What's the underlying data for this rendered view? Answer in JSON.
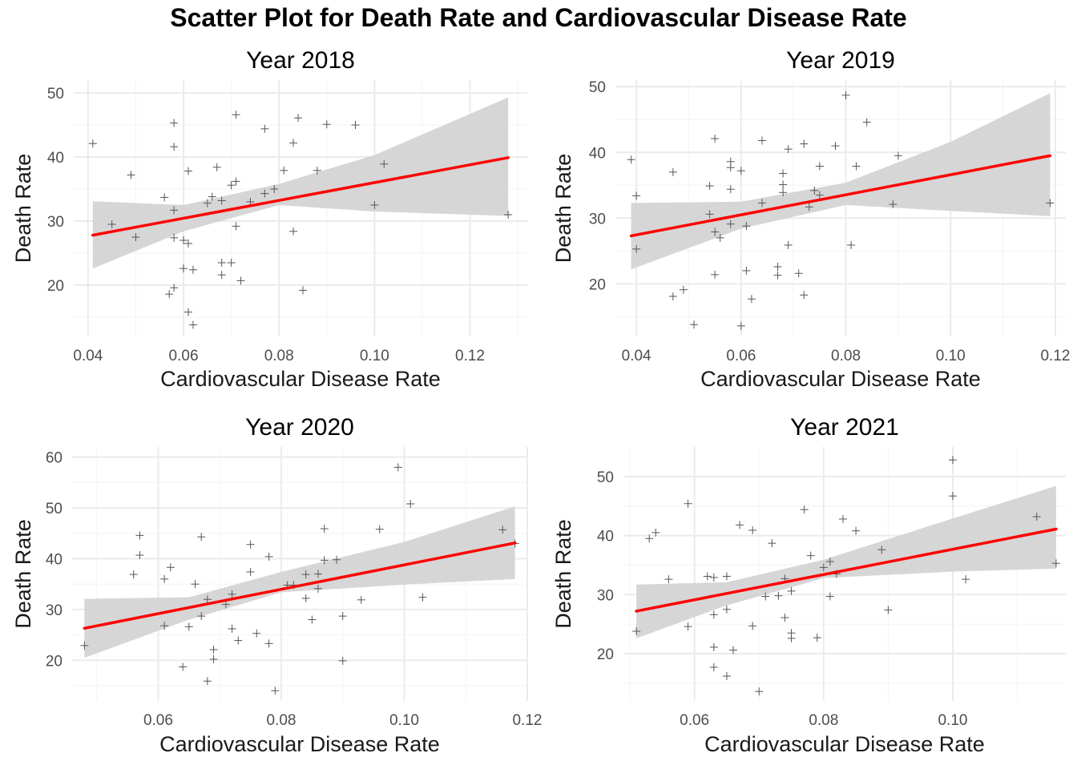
{
  "title": "Scatter Plot for Death Rate and Cardiovascular Disease Rate",
  "colors": {
    "fit": "#ff0000",
    "band": "#d4d4d4",
    "grid_major": "#ebebeb",
    "grid_minor": "#f5f5f5",
    "point": "#555555"
  },
  "chart_data": [
    {
      "type": "scatter",
      "title": "Year 2018",
      "xlabel": "Cardiovascular Disease Rate",
      "ylabel": "Death Rate",
      "xlim": [
        0.037,
        0.132
      ],
      "ylim": [
        12,
        52
      ],
      "xticks": [
        0.04,
        0.06,
        0.08,
        0.1,
        0.12
      ],
      "xtick_labels": [
        "0.04",
        "0.06",
        "0.08",
        "0.10",
        "0.12"
      ],
      "yticks": [
        20,
        30,
        40,
        50
      ],
      "ytick_labels": [
        "20",
        "30",
        "40",
        "50"
      ],
      "grid": true,
      "marker": "plus",
      "fit": {
        "x": [
          0.041,
          0.128
        ],
        "y": [
          27.8,
          39.9
        ]
      },
      "band": {
        "x": [
          0.041,
          0.06,
          0.08,
          0.1,
          0.128
        ],
        "lower": [
          22.6,
          28.4,
          32.5,
          31.5,
          30.8
        ],
        "upper": [
          33.1,
          32.5,
          35.8,
          40.3,
          49.3
        ]
      },
      "points": {
        "x": [
          0.041,
          0.045,
          0.049,
          0.05,
          0.056,
          0.057,
          0.058,
          0.058,
          0.058,
          0.058,
          0.058,
          0.06,
          0.06,
          0.061,
          0.061,
          0.061,
          0.062,
          0.062,
          0.065,
          0.066,
          0.067,
          0.068,
          0.068,
          0.068,
          0.07,
          0.07,
          0.071,
          0.071,
          0.071,
          0.072,
          0.074,
          0.077,
          0.077,
          0.079,
          0.081,
          0.083,
          0.083,
          0.084,
          0.085,
          0.088,
          0.09,
          0.096,
          0.1,
          0.102,
          0.128
        ],
        "y": [
          42.1,
          29.5,
          37.2,
          27.5,
          33.7,
          18.6,
          45.3,
          41.6,
          31.7,
          27.4,
          19.6,
          27.0,
          22.6,
          37.8,
          26.5,
          15.8,
          22.4,
          13.8,
          32.8,
          33.8,
          38.4,
          23.5,
          21.6,
          33.2,
          35.6,
          23.5,
          46.6,
          36.2,
          29.2,
          20.7,
          33.0,
          44.4,
          34.3,
          35.0,
          37.9,
          42.2,
          28.4,
          46.1,
          19.2,
          37.9,
          45.1,
          45.0,
          32.5,
          38.9,
          31.0
        ]
      }
    },
    {
      "type": "scatter",
      "title": "Year 2019",
      "xlabel": "Cardiovascular Disease Rate",
      "ylabel": "Death Rate",
      "xlim": [
        0.036,
        0.122
      ],
      "ylim": [
        12,
        51
      ],
      "xticks": [
        0.04,
        0.06,
        0.08,
        0.1,
        0.12
      ],
      "xtick_labels": [
        "0.04",
        "0.06",
        "0.08",
        "0.10",
        "0.12"
      ],
      "yticks": [
        20,
        30,
        40,
        50
      ],
      "ytick_labels": [
        "20",
        "30",
        "40",
        "50"
      ],
      "grid": true,
      "marker": "plus",
      "fit": {
        "x": [
          0.039,
          0.119
        ],
        "y": [
          27.3,
          39.5
        ]
      },
      "band": {
        "x": [
          0.039,
          0.06,
          0.08,
          0.1,
          0.119
        ],
        "lower": [
          22.2,
          28.4,
          32.0,
          31.1,
          30.3
        ],
        "upper": [
          32.3,
          32.5,
          35.4,
          41.6,
          49.0
        ]
      },
      "points": {
        "x": [
          0.039,
          0.04,
          0.04,
          0.047,
          0.047,
          0.049,
          0.051,
          0.054,
          0.054,
          0.055,
          0.055,
          0.055,
          0.056,
          0.058,
          0.058,
          0.058,
          0.058,
          0.06,
          0.06,
          0.061,
          0.061,
          0.062,
          0.064,
          0.064,
          0.067,
          0.067,
          0.068,
          0.068,
          0.068,
          0.069,
          0.069,
          0.071,
          0.072,
          0.072,
          0.073,
          0.074,
          0.075,
          0.075,
          0.078,
          0.08,
          0.081,
          0.082,
          0.084,
          0.089,
          0.09,
          0.119
        ],
        "y": [
          38.9,
          33.4,
          25.3,
          37.0,
          18.1,
          19.1,
          13.8,
          34.9,
          30.6,
          42.1,
          27.9,
          21.4,
          27.0,
          38.6,
          37.7,
          34.4,
          29.1,
          37.2,
          13.6,
          22.0,
          28.8,
          17.7,
          41.8,
          32.3,
          22.6,
          21.3,
          36.8,
          35.1,
          33.9,
          40.5,
          25.9,
          21.6,
          41.3,
          18.3,
          31.7,
          34.2,
          37.9,
          33.5,
          41.0,
          48.7,
          25.9,
          37.9,
          44.6,
          32.1,
          39.5,
          32.3
        ]
      }
    },
    {
      "type": "scatter",
      "title": "Year 2020",
      "xlabel": "Cardiovascular Disease Rate",
      "ylabel": "Death Rate",
      "xlim": [
        0.046,
        0.12
      ],
      "ylim": [
        12,
        62
      ],
      "xticks": [
        0.06,
        0.08,
        0.1,
        0.12
      ],
      "xtick_labels": [
        "0.06",
        "0.08",
        "0.10",
        "0.12"
      ],
      "yticks": [
        20,
        30,
        40,
        50,
        60
      ],
      "ytick_labels": [
        "20",
        "30",
        "40",
        "50",
        "60"
      ],
      "grid": true,
      "marker": "plus",
      "fit": {
        "x": [
          0.048,
          0.118
        ],
        "y": [
          26.3,
          43.1
        ]
      },
      "band": {
        "x": [
          0.048,
          0.065,
          0.08,
          0.1,
          0.118
        ],
        "lower": [
          20.5,
          28.0,
          33.4,
          34.9,
          36.0
        ],
        "upper": [
          32.1,
          32.4,
          37.4,
          43.3,
          50.3
        ]
      },
      "points": {
        "x": [
          0.048,
          0.056,
          0.057,
          0.057,
          0.061,
          0.061,
          0.062,
          0.064,
          0.065,
          0.066,
          0.067,
          0.067,
          0.068,
          0.068,
          0.069,
          0.069,
          0.071,
          0.072,
          0.072,
          0.073,
          0.075,
          0.075,
          0.076,
          0.078,
          0.078,
          0.079,
          0.081,
          0.082,
          0.084,
          0.084,
          0.085,
          0.086,
          0.086,
          0.087,
          0.087,
          0.089,
          0.09,
          0.09,
          0.093,
          0.096,
          0.099,
          0.101,
          0.103,
          0.116,
          0.118
        ],
        "y": [
          22.9,
          36.9,
          44.6,
          40.7,
          36.0,
          26.8,
          38.3,
          18.7,
          26.6,
          35.0,
          44.3,
          28.7,
          15.9,
          32.0,
          22.1,
          20.2,
          31.0,
          33.0,
          26.2,
          23.9,
          42.8,
          37.4,
          25.3,
          40.4,
          23.3,
          14.0,
          34.8,
          34.8,
          36.9,
          32.2,
          28.0,
          34.1,
          37.0,
          45.9,
          39.7,
          39.8,
          28.7,
          19.9,
          31.9,
          45.8,
          58.0,
          50.8,
          32.4,
          45.7,
          43.0
        ]
      }
    },
    {
      "type": "scatter",
      "title": "Year 2021",
      "xlabel": "Cardiovascular Disease Rate",
      "ylabel": "Death Rate",
      "xlim": [
        0.049,
        0.1175
      ],
      "ylim": [
        12,
        55
      ],
      "xticks": [
        0.06,
        0.08,
        0.1
      ],
      "xtick_labels": [
        "0.06",
        "0.08",
        "0.10"
      ],
      "yticks": [
        20,
        30,
        40,
        50
      ],
      "ytick_labels": [
        "20",
        "30",
        "40",
        "50"
      ],
      "grid": true,
      "marker": "plus",
      "fit": {
        "x": [
          0.051,
          0.116
        ],
        "y": [
          27.2,
          41.1
        ]
      },
      "band": {
        "x": [
          0.051,
          0.065,
          0.08,
          0.1,
          0.116
        ],
        "lower": [
          22.6,
          28.2,
          32.8,
          33.9,
          34.4
        ],
        "upper": [
          31.7,
          32.1,
          35.9,
          42.9,
          48.4
        ]
      },
      "points": {
        "x": [
          0.051,
          0.053,
          0.054,
          0.056,
          0.059,
          0.059,
          0.062,
          0.063,
          0.063,
          0.063,
          0.063,
          0.065,
          0.065,
          0.065,
          0.066,
          0.067,
          0.069,
          0.069,
          0.07,
          0.071,
          0.072,
          0.073,
          0.074,
          0.074,
          0.075,
          0.075,
          0.075,
          0.077,
          0.078,
          0.079,
          0.08,
          0.081,
          0.081,
          0.082,
          0.083,
          0.085,
          0.089,
          0.09,
          0.1,
          0.1,
          0.102,
          0.113,
          0.116
        ],
        "y": [
          23.8,
          39.5,
          40.5,
          32.6,
          45.4,
          24.6,
          33.1,
          32.9,
          26.6,
          21.1,
          17.7,
          33.1,
          27.5,
          16.2,
          20.6,
          41.8,
          40.9,
          24.7,
          13.6,
          29.7,
          38.7,
          29.8,
          32.7,
          26.1,
          30.6,
          23.5,
          22.6,
          44.4,
          36.6,
          22.7,
          34.6,
          35.6,
          29.7,
          33.5,
          42.8,
          40.8,
          37.6,
          27.4,
          52.8,
          46.7,
          32.6,
          43.2,
          35.3
        ]
      }
    }
  ]
}
